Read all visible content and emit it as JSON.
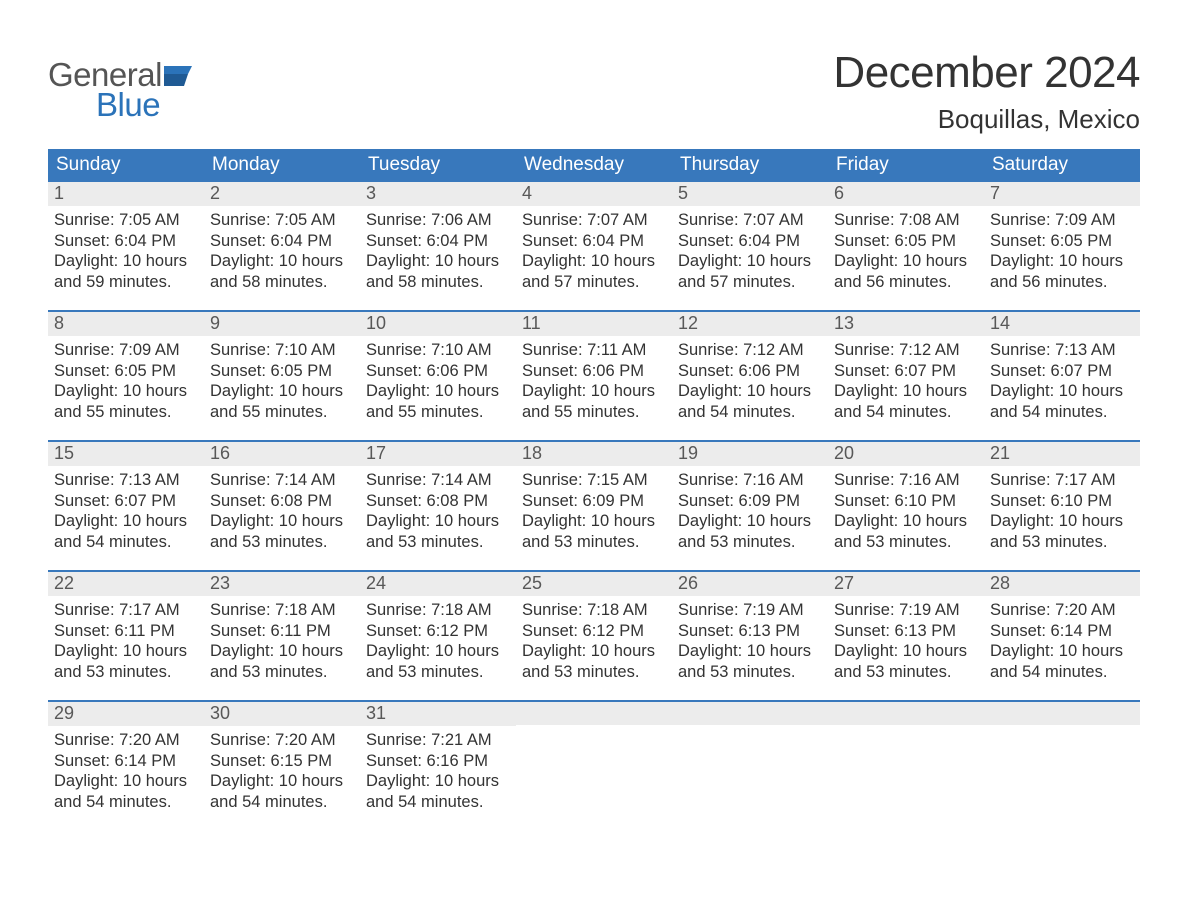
{
  "brand": {
    "word1": "General",
    "word2": "Blue",
    "text_color": "#555555",
    "accent_color": "#2b73b9"
  },
  "title": "December 2024",
  "location": "Boquillas, Mexico",
  "colors": {
    "header_bg": "#3878bc",
    "header_text": "#ffffff",
    "daynum_bg": "#ececec",
    "daynum_text": "#585858",
    "body_text": "#333333",
    "row_border": "#3878bc",
    "page_bg": "#ffffff"
  },
  "fonts": {
    "title_size_pt": 33,
    "location_size_pt": 20,
    "weekday_size_pt": 14,
    "daynum_size_pt": 14,
    "body_size_pt": 12
  },
  "weekdays": [
    "Sunday",
    "Monday",
    "Tuesday",
    "Wednesday",
    "Thursday",
    "Friday",
    "Saturday"
  ],
  "weeks": [
    [
      {
        "n": "1",
        "sunrise": "7:05 AM",
        "sunset": "6:04 PM",
        "daylight": "10 hours and 59 minutes."
      },
      {
        "n": "2",
        "sunrise": "7:05 AM",
        "sunset": "6:04 PM",
        "daylight": "10 hours and 58 minutes."
      },
      {
        "n": "3",
        "sunrise": "7:06 AM",
        "sunset": "6:04 PM",
        "daylight": "10 hours and 58 minutes."
      },
      {
        "n": "4",
        "sunrise": "7:07 AM",
        "sunset": "6:04 PM",
        "daylight": "10 hours and 57 minutes."
      },
      {
        "n": "5",
        "sunrise": "7:07 AM",
        "sunset": "6:04 PM",
        "daylight": "10 hours and 57 minutes."
      },
      {
        "n": "6",
        "sunrise": "7:08 AM",
        "sunset": "6:05 PM",
        "daylight": "10 hours and 56 minutes."
      },
      {
        "n": "7",
        "sunrise": "7:09 AM",
        "sunset": "6:05 PM",
        "daylight": "10 hours and 56 minutes."
      }
    ],
    [
      {
        "n": "8",
        "sunrise": "7:09 AM",
        "sunset": "6:05 PM",
        "daylight": "10 hours and 55 minutes."
      },
      {
        "n": "9",
        "sunrise": "7:10 AM",
        "sunset": "6:05 PM",
        "daylight": "10 hours and 55 minutes."
      },
      {
        "n": "10",
        "sunrise": "7:10 AM",
        "sunset": "6:06 PM",
        "daylight": "10 hours and 55 minutes."
      },
      {
        "n": "11",
        "sunrise": "7:11 AM",
        "sunset": "6:06 PM",
        "daylight": "10 hours and 55 minutes."
      },
      {
        "n": "12",
        "sunrise": "7:12 AM",
        "sunset": "6:06 PM",
        "daylight": "10 hours and 54 minutes."
      },
      {
        "n": "13",
        "sunrise": "7:12 AM",
        "sunset": "6:07 PM",
        "daylight": "10 hours and 54 minutes."
      },
      {
        "n": "14",
        "sunrise": "7:13 AM",
        "sunset": "6:07 PM",
        "daylight": "10 hours and 54 minutes."
      }
    ],
    [
      {
        "n": "15",
        "sunrise": "7:13 AM",
        "sunset": "6:07 PM",
        "daylight": "10 hours and 54 minutes."
      },
      {
        "n": "16",
        "sunrise": "7:14 AM",
        "sunset": "6:08 PM",
        "daylight": "10 hours and 53 minutes."
      },
      {
        "n": "17",
        "sunrise": "7:14 AM",
        "sunset": "6:08 PM",
        "daylight": "10 hours and 53 minutes."
      },
      {
        "n": "18",
        "sunrise": "7:15 AM",
        "sunset": "6:09 PM",
        "daylight": "10 hours and 53 minutes."
      },
      {
        "n": "19",
        "sunrise": "7:16 AM",
        "sunset": "6:09 PM",
        "daylight": "10 hours and 53 minutes."
      },
      {
        "n": "20",
        "sunrise": "7:16 AM",
        "sunset": "6:10 PM",
        "daylight": "10 hours and 53 minutes."
      },
      {
        "n": "21",
        "sunrise": "7:17 AM",
        "sunset": "6:10 PM",
        "daylight": "10 hours and 53 minutes."
      }
    ],
    [
      {
        "n": "22",
        "sunrise": "7:17 AM",
        "sunset": "6:11 PM",
        "daylight": "10 hours and 53 minutes."
      },
      {
        "n": "23",
        "sunrise": "7:18 AM",
        "sunset": "6:11 PM",
        "daylight": "10 hours and 53 minutes."
      },
      {
        "n": "24",
        "sunrise": "7:18 AM",
        "sunset": "6:12 PM",
        "daylight": "10 hours and 53 minutes."
      },
      {
        "n": "25",
        "sunrise": "7:18 AM",
        "sunset": "6:12 PM",
        "daylight": "10 hours and 53 minutes."
      },
      {
        "n": "26",
        "sunrise": "7:19 AM",
        "sunset": "6:13 PM",
        "daylight": "10 hours and 53 minutes."
      },
      {
        "n": "27",
        "sunrise": "7:19 AM",
        "sunset": "6:13 PM",
        "daylight": "10 hours and 53 minutes."
      },
      {
        "n": "28",
        "sunrise": "7:20 AM",
        "sunset": "6:14 PM",
        "daylight": "10 hours and 54 minutes."
      }
    ],
    [
      {
        "n": "29",
        "sunrise": "7:20 AM",
        "sunset": "6:14 PM",
        "daylight": "10 hours and 54 minutes."
      },
      {
        "n": "30",
        "sunrise": "7:20 AM",
        "sunset": "6:15 PM",
        "daylight": "10 hours and 54 minutes."
      },
      {
        "n": "31",
        "sunrise": "7:21 AM",
        "sunset": "6:16 PM",
        "daylight": "10 hours and 54 minutes."
      },
      null,
      null,
      null,
      null
    ]
  ],
  "labels": {
    "sunrise_prefix": "Sunrise: ",
    "sunset_prefix": "Sunset: ",
    "daylight_prefix": "Daylight: "
  }
}
